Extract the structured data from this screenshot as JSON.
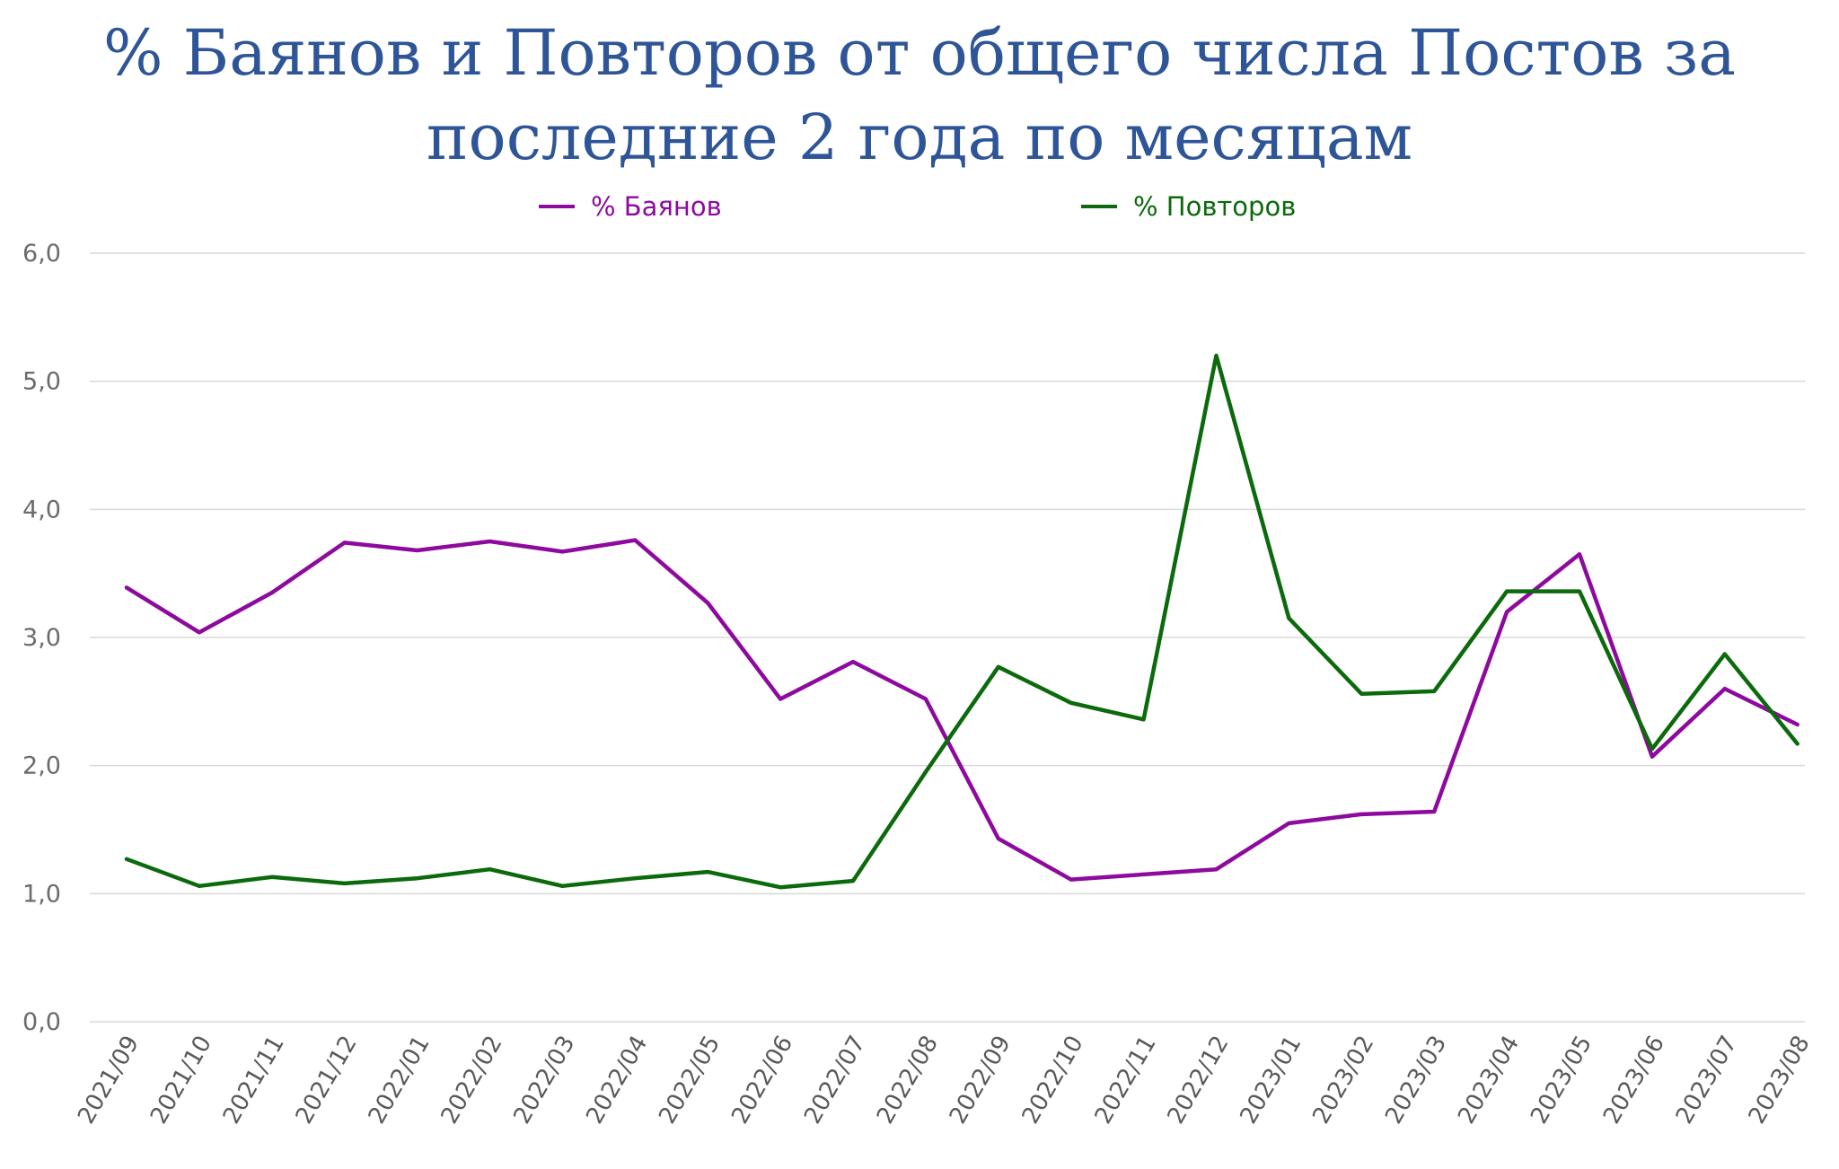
{
  "chart_data": {
    "type": "line",
    "title_lines": [
      "% Баянов и Повторов от общего числа Постов за",
      "последние 2 года по месяцам"
    ],
    "categories": [
      "2021/09",
      "2021/10",
      "2021/11",
      "2021/12",
      "2022/01",
      "2022/02",
      "2022/03",
      "2022/04",
      "2022/05",
      "2022/06",
      "2022/07",
      "2022/08",
      "2022/09",
      "2022/10",
      "2022/11",
      "2022/12",
      "2023/01",
      "2023/02",
      "2023/03",
      "2023/04",
      "2023/05",
      "2023/06",
      "2023/07",
      "2023/08"
    ],
    "series": [
      {
        "name": "% Баянов",
        "color": "#8e0a9e",
        "values": [
          3.39,
          3.04,
          3.35,
          3.74,
          3.68,
          3.75,
          3.67,
          3.76,
          3.27,
          2.52,
          2.81,
          2.52,
          1.43,
          1.11,
          1.15,
          1.19,
          1.55,
          1.62,
          1.64,
          3.2,
          3.65,
          2.07,
          2.6,
          2.32
        ]
      },
      {
        "name": "% Повторов",
        "color": "#0b6a0b",
        "values": [
          1.27,
          1.06,
          1.13,
          1.08,
          1.12,
          1.19,
          1.06,
          1.12,
          1.17,
          1.05,
          1.1,
          1.95,
          2.77,
          2.49,
          2.36,
          5.2,
          3.15,
          2.56,
          2.58,
          3.36,
          3.36,
          2.13,
          2.87,
          2.17
        ]
      }
    ],
    "y_ticks": [
      "0,0",
      "1,0",
      "2,0",
      "3,0",
      "4,0",
      "5,0",
      "6,0"
    ],
    "ylim": [
      0,
      6
    ],
    "grid": true,
    "legend_position": "top"
  }
}
